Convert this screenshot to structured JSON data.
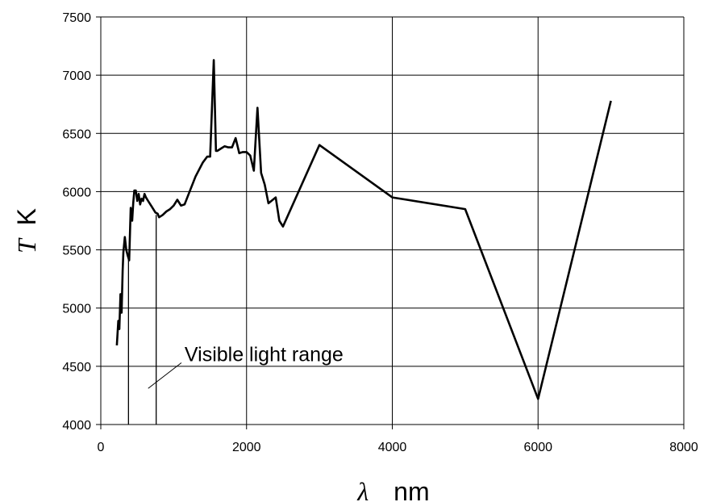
{
  "chart_data": {
    "type": "line",
    "title": "",
    "xlabel_symbol": "λ",
    "xlabel_unit": "nm",
    "ylabel_symbol": "T",
    "ylabel_unit": "K",
    "xlim": [
      0,
      8000
    ],
    "ylim": [
      4000,
      7500
    ],
    "xticks": [
      0,
      2000,
      4000,
      6000,
      8000
    ],
    "yticks": [
      4000,
      4500,
      5000,
      5500,
      6000,
      6500,
      7000,
      7500
    ],
    "grid": true,
    "line_color": "#000000",
    "series": [
      {
        "x": [
          220,
          240,
          255,
          270,
          285,
          300,
          310,
          330,
          350,
          370,
          390,
          410,
          430,
          445,
          460,
          480,
          500,
          520,
          540,
          560,
          580,
          600,
          620,
          650,
          700,
          750,
          780,
          800,
          850,
          900,
          950,
          1000,
          1050,
          1100,
          1150,
          1200,
          1300,
          1400,
          1460,
          1500,
          1550,
          1580,
          1600,
          1650,
          1700,
          1750,
          1800,
          1850,
          1900,
          1950,
          2000,
          2050,
          2100,
          2150,
          2200,
          2250,
          2300,
          2400,
          2450,
          2500,
          3000,
          4000,
          5000,
          6000,
          7000
        ],
        "y": [
          4680,
          4890,
          4820,
          5120,
          4960,
          5320,
          5480,
          5610,
          5500,
          5450,
          5410,
          5860,
          5750,
          5900,
          6010,
          6010,
          5920,
          5980,
          5890,
          5940,
          5920,
          5980,
          5950,
          5920,
          5870,
          5820,
          5810,
          5780,
          5800,
          5830,
          5850,
          5880,
          5930,
          5880,
          5890,
          5970,
          6130,
          6250,
          6300,
          6300,
          7130,
          6350,
          6350,
          6370,
          6390,
          6380,
          6380,
          6460,
          6330,
          6340,
          6340,
          6310,
          6180,
          6720,
          6160,
          6060,
          5900,
          5950,
          5750,
          5700,
          6400,
          5950,
          5850,
          4220,
          6780
        ]
      }
    ],
    "markers": [
      {
        "x": 380,
        "to_y": 5420
      },
      {
        "x": 760,
        "to_y": 5800
      }
    ],
    "annotation": {
      "text": "Visible light range",
      "from": [
        1150,
        4530
      ],
      "to": [
        650,
        4310
      ]
    }
  }
}
